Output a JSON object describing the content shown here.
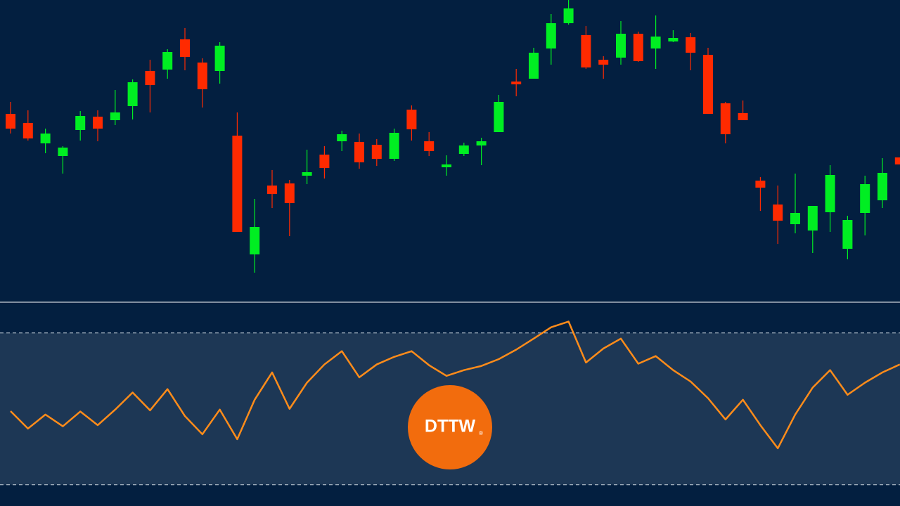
{
  "chart_data": [
    {
      "type": "candlestick",
      "up_color": "#00ee22",
      "down_color": "#ff2a00",
      "ylim": [
        0,
        430
      ],
      "open": [
        268,
        255,
        226,
        208,
        245,
        264,
        259,
        279,
        329,
        331,
        374,
        341,
        329,
        237,
        68,
        166,
        169,
        180,
        210,
        229,
        228,
        224,
        204,
        274,
        229,
        192,
        211,
        223,
        242,
        314,
        318,
        361,
        397,
        380,
        345,
        348,
        382,
        361,
        371,
        377,
        352,
        283,
        269,
        173,
        139,
        111,
        102,
        128,
        76,
        127,
        145,
        206
      ],
      "high": [
        285,
        273,
        247,
        222,
        272,
        273,
        302,
        317,
        345,
        360,
        390,
        347,
        370,
        270,
        147,
        188,
        174,
        217,
        222,
        244,
        240,
        232,
        247,
        280,
        242,
        209,
        227,
        234,
        295,
        332,
        362,
        410,
        430,
        393,
        350,
        400,
        385,
        408,
        387,
        383,
        362,
        285,
        287,
        178,
        166,
        183,
        137,
        195,
        123,
        180,
        205,
        206
      ],
      "low": [
        240,
        230,
        212,
        183,
        230,
        229,
        252,
        260,
        270,
        318,
        330,
        277,
        311,
        100,
        42,
        134,
        94,
        168,
        176,
        215,
        190,
        194,
        201,
        230,
        208,
        180,
        208,
        195,
        242,
        293,
        318,
        338,
        395,
        332,
        318,
        338,
        342,
        332,
        370,
        330,
        268,
        226,
        259,
        130,
        83,
        98,
        70,
        100,
        61,
        95,
        134,
        196
      ],
      "close": [
        247,
        233,
        240,
        220,
        265,
        247,
        270,
        313,
        309,
        356,
        349,
        303,
        365,
        100,
        107,
        154,
        141,
        185,
        191,
        239,
        199,
        204,
        241,
        246,
        215,
        196,
        223,
        229,
        285,
        310,
        355,
        397,
        418,
        334,
        338,
        382,
        343,
        378,
        376,
        355,
        268,
        239,
        259,
        163,
        116,
        127,
        137,
        181,
        117,
        168,
        184,
        196
      ]
    },
    {
      "type": "line",
      "color": "#ff8c1a",
      "ylim": [
        24.4,
        78.1
      ],
      "reference_lines": [
        30,
        70
      ],
      "values": [
        49.4,
        44.8,
        48.5,
        45.4,
        49.3,
        45.7,
        49.8,
        54.3,
        49.6,
        55.2,
        48.1,
        43.3,
        49.8,
        42.0,
        52.4,
        59.6,
        50.0,
        56.9,
        61.7,
        65.2,
        58.3,
        61.7,
        63.7,
        65.2,
        61.5,
        58.7,
        60.2,
        61.3,
        63.1,
        65.6,
        68.5,
        71.5,
        73.0,
        62.2,
        65.9,
        68.5,
        61.9,
        63.9,
        60.2,
        57.2,
        52.8,
        47.2,
        52.4,
        45.7,
        39.6,
        48.5,
        55.6,
        60.2,
        53.7,
        56.9,
        59.6,
        61.7
      ]
    }
  ],
  "logo": {
    "text": "DTTW",
    "mark": "®"
  }
}
